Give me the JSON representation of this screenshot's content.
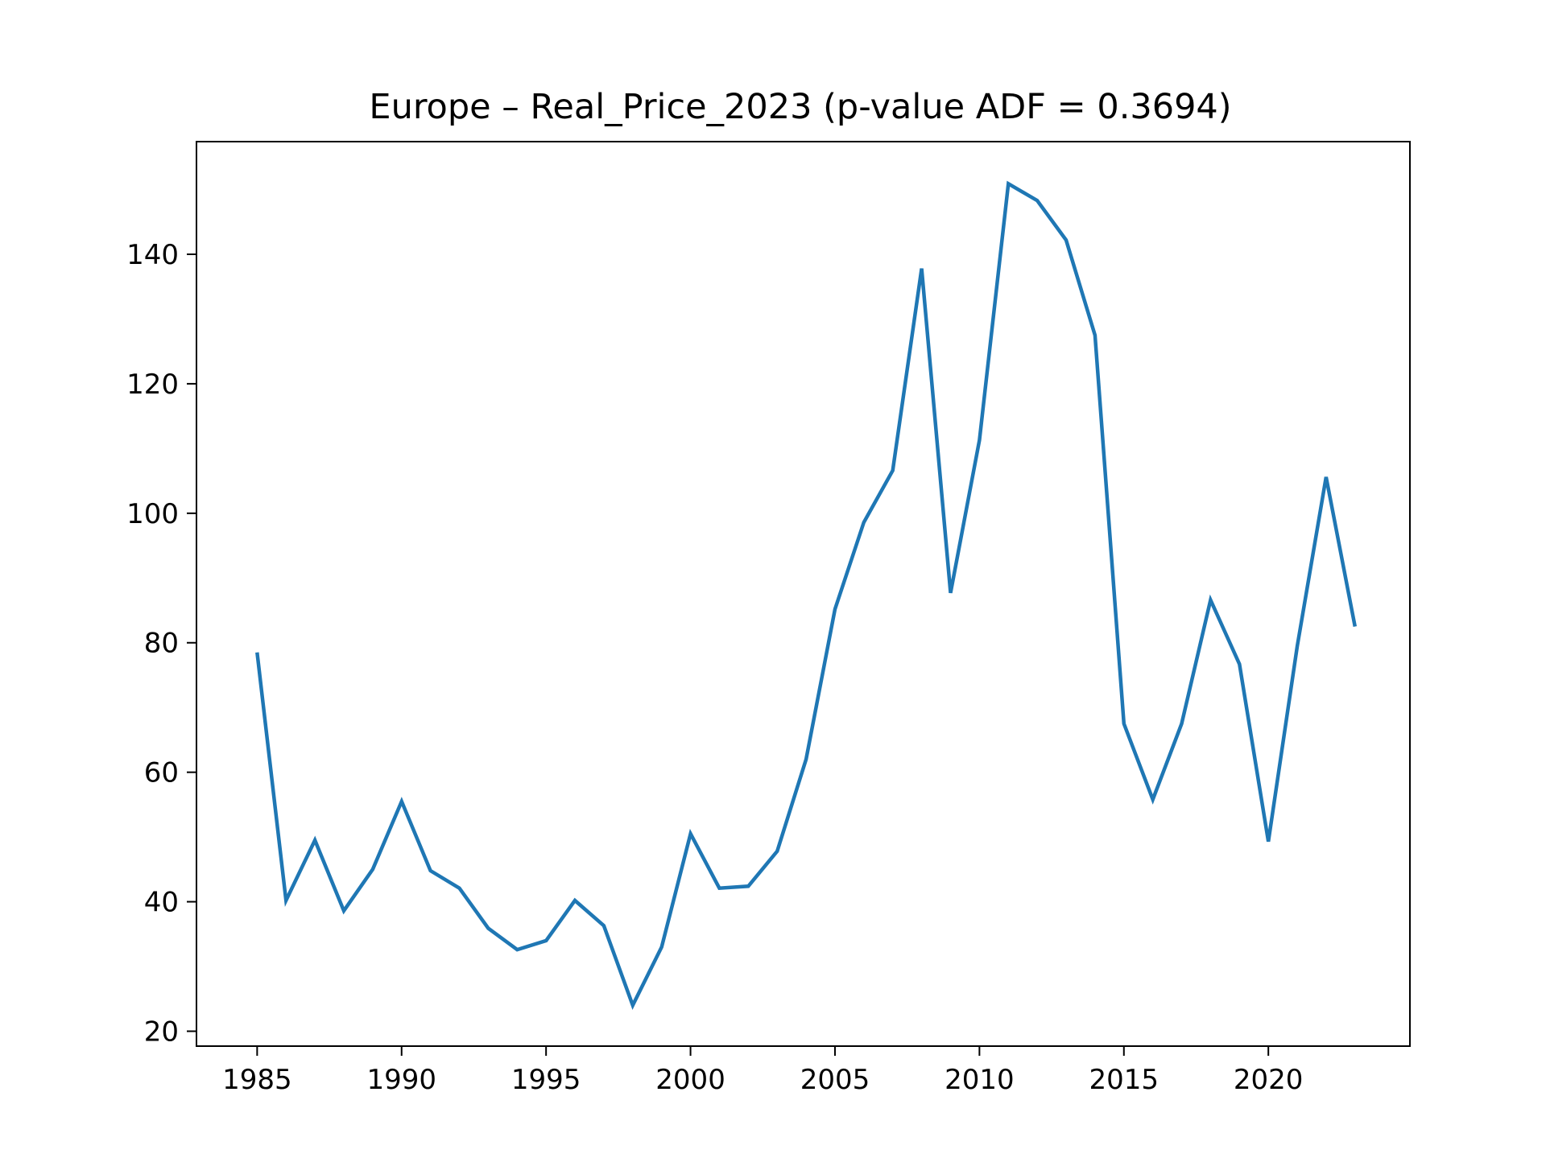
{
  "chart_data": {
    "type": "line",
    "title": "Europe – Real_Price_2023 (p-value ADF = 0.3694)",
    "xlabel": "",
    "ylabel": "",
    "x": [
      1985,
      1986,
      1987,
      1988,
      1989,
      1990,
      1991,
      1992,
      1993,
      1994,
      1995,
      1996,
      1997,
      1998,
      1999,
      2000,
      2001,
      2002,
      2003,
      2004,
      2005,
      2006,
      2007,
      2008,
      2009,
      2010,
      2011,
      2012,
      2013,
      2014,
      2015,
      2016,
      2017,
      2018,
      2019,
      2020,
      2021,
      2022,
      2023
    ],
    "series": [
      {
        "values": [
          78.5,
          40.2,
          49.5,
          38.6,
          45.0,
          55.5,
          44.8,
          42.1,
          35.9,
          32.6,
          34.0,
          40.2,
          36.3,
          24.0,
          33.0,
          50.5,
          42.1,
          42.4,
          47.8,
          62.0,
          85.2,
          98.6,
          106.6,
          137.8,
          87.7,
          111.3,
          150.9,
          148.3,
          142.2,
          127.5,
          67.5,
          55.8,
          67.5,
          86.6,
          76.7,
          49.3,
          79.5,
          105.6,
          82.5
        ]
      }
    ],
    "xlim": [
      1982.9,
      2024.9
    ],
    "ylim": [
      17.7,
      157.4
    ],
    "xticks": [
      1985,
      1990,
      1995,
      2000,
      2005,
      2010,
      2015,
      2020
    ],
    "yticks": [
      20,
      40,
      60,
      80,
      100,
      120,
      140
    ],
    "line_color": "#1f77b4",
    "grid": false,
    "legend": false
  }
}
